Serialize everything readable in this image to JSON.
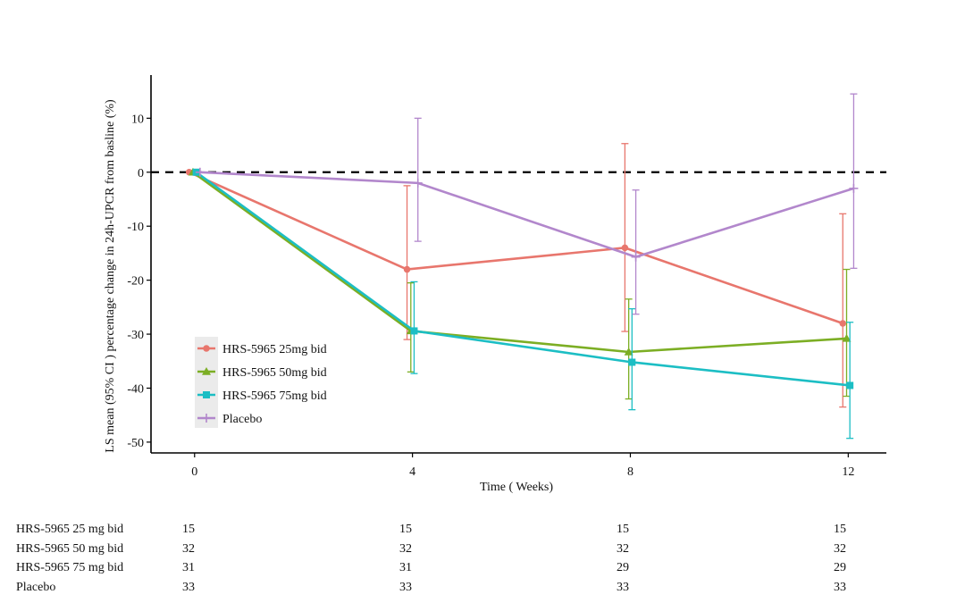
{
  "chart_data": {
    "type": "line",
    "title": "",
    "xlabel": "Time ( Weeks)",
    "ylabel": "LS mean (95% CI ) percentage change in 24h-UPCR from basline (%)",
    "x": [
      0,
      4,
      8,
      12
    ],
    "x_tick_labels": [
      "0",
      "4",
      "8",
      "12"
    ],
    "xlim": [
      -0.8,
      12.7
    ],
    "ylim": [
      -52,
      18
    ],
    "y_ticks": [
      10,
      0,
      -10,
      -20,
      -30,
      -40,
      -50
    ],
    "y_tick_labels": [
      "10",
      "0",
      "-10",
      "-20",
      "-30",
      "-40",
      "-50"
    ],
    "reference_line": {
      "y": 0,
      "style": "dashed",
      "color": "#000000"
    },
    "grid": false,
    "legend_position": "bottom-left",
    "series": [
      {
        "name": "HRS-5965 25mg bid",
        "color": "#e8766d",
        "marker": "circle",
        "x_offset": -0.1,
        "y": [
          0,
          -18,
          -14,
          -28
        ],
        "ci_lower": [
          0,
          -31,
          -29.5,
          -43.5
        ],
        "ci_upper": [
          0,
          -2.5,
          5.3,
          -7.7
        ]
      },
      {
        "name": "HRS-5965 50mg bid",
        "color": "#7cae24",
        "marker": "triangle",
        "x_offset": -0.03,
        "y": [
          0,
          -29.4,
          -33.3,
          -30.8
        ],
        "ci_lower": [
          0,
          -37,
          -42,
          -41.5
        ],
        "ci_upper": [
          0,
          -20.5,
          -23.5,
          -18
        ]
      },
      {
        "name": "HRS-5965 75mg bid",
        "color": "#1cbec4",
        "marker": "square",
        "x_offset": 0.03,
        "y": [
          0,
          -29.4,
          -35.2,
          -39.5
        ],
        "ci_lower": [
          0,
          -37.3,
          -44,
          -49.3
        ],
        "ci_upper": [
          0,
          -20.3,
          -25.3,
          -27.8
        ]
      },
      {
        "name": "Placebo",
        "color": "#b287cc",
        "marker": "plus",
        "x_offset": 0.1,
        "y": [
          0,
          -2,
          -15.7,
          -3
        ],
        "ci_lower": [
          0,
          -12.8,
          -26.3,
          -17.8
        ],
        "ci_upper": [
          0,
          10,
          -3.3,
          14.5
        ]
      }
    ]
  },
  "risk_table": {
    "rows": [
      {
        "label": "HRS-5965 25 mg bid",
        "counts": [
          "15",
          "15",
          "15",
          "15"
        ]
      },
      {
        "label": "HRS-5965 50 mg bid",
        "counts": [
          "32",
          "32",
          "32",
          "32"
        ]
      },
      {
        "label": "HRS-5965 75 mg bid",
        "counts": [
          "31",
          "31",
          "29",
          "29"
        ]
      },
      {
        "label": "Placebo",
        "counts": [
          "33",
          "33",
          "33",
          "33"
        ]
      }
    ]
  }
}
